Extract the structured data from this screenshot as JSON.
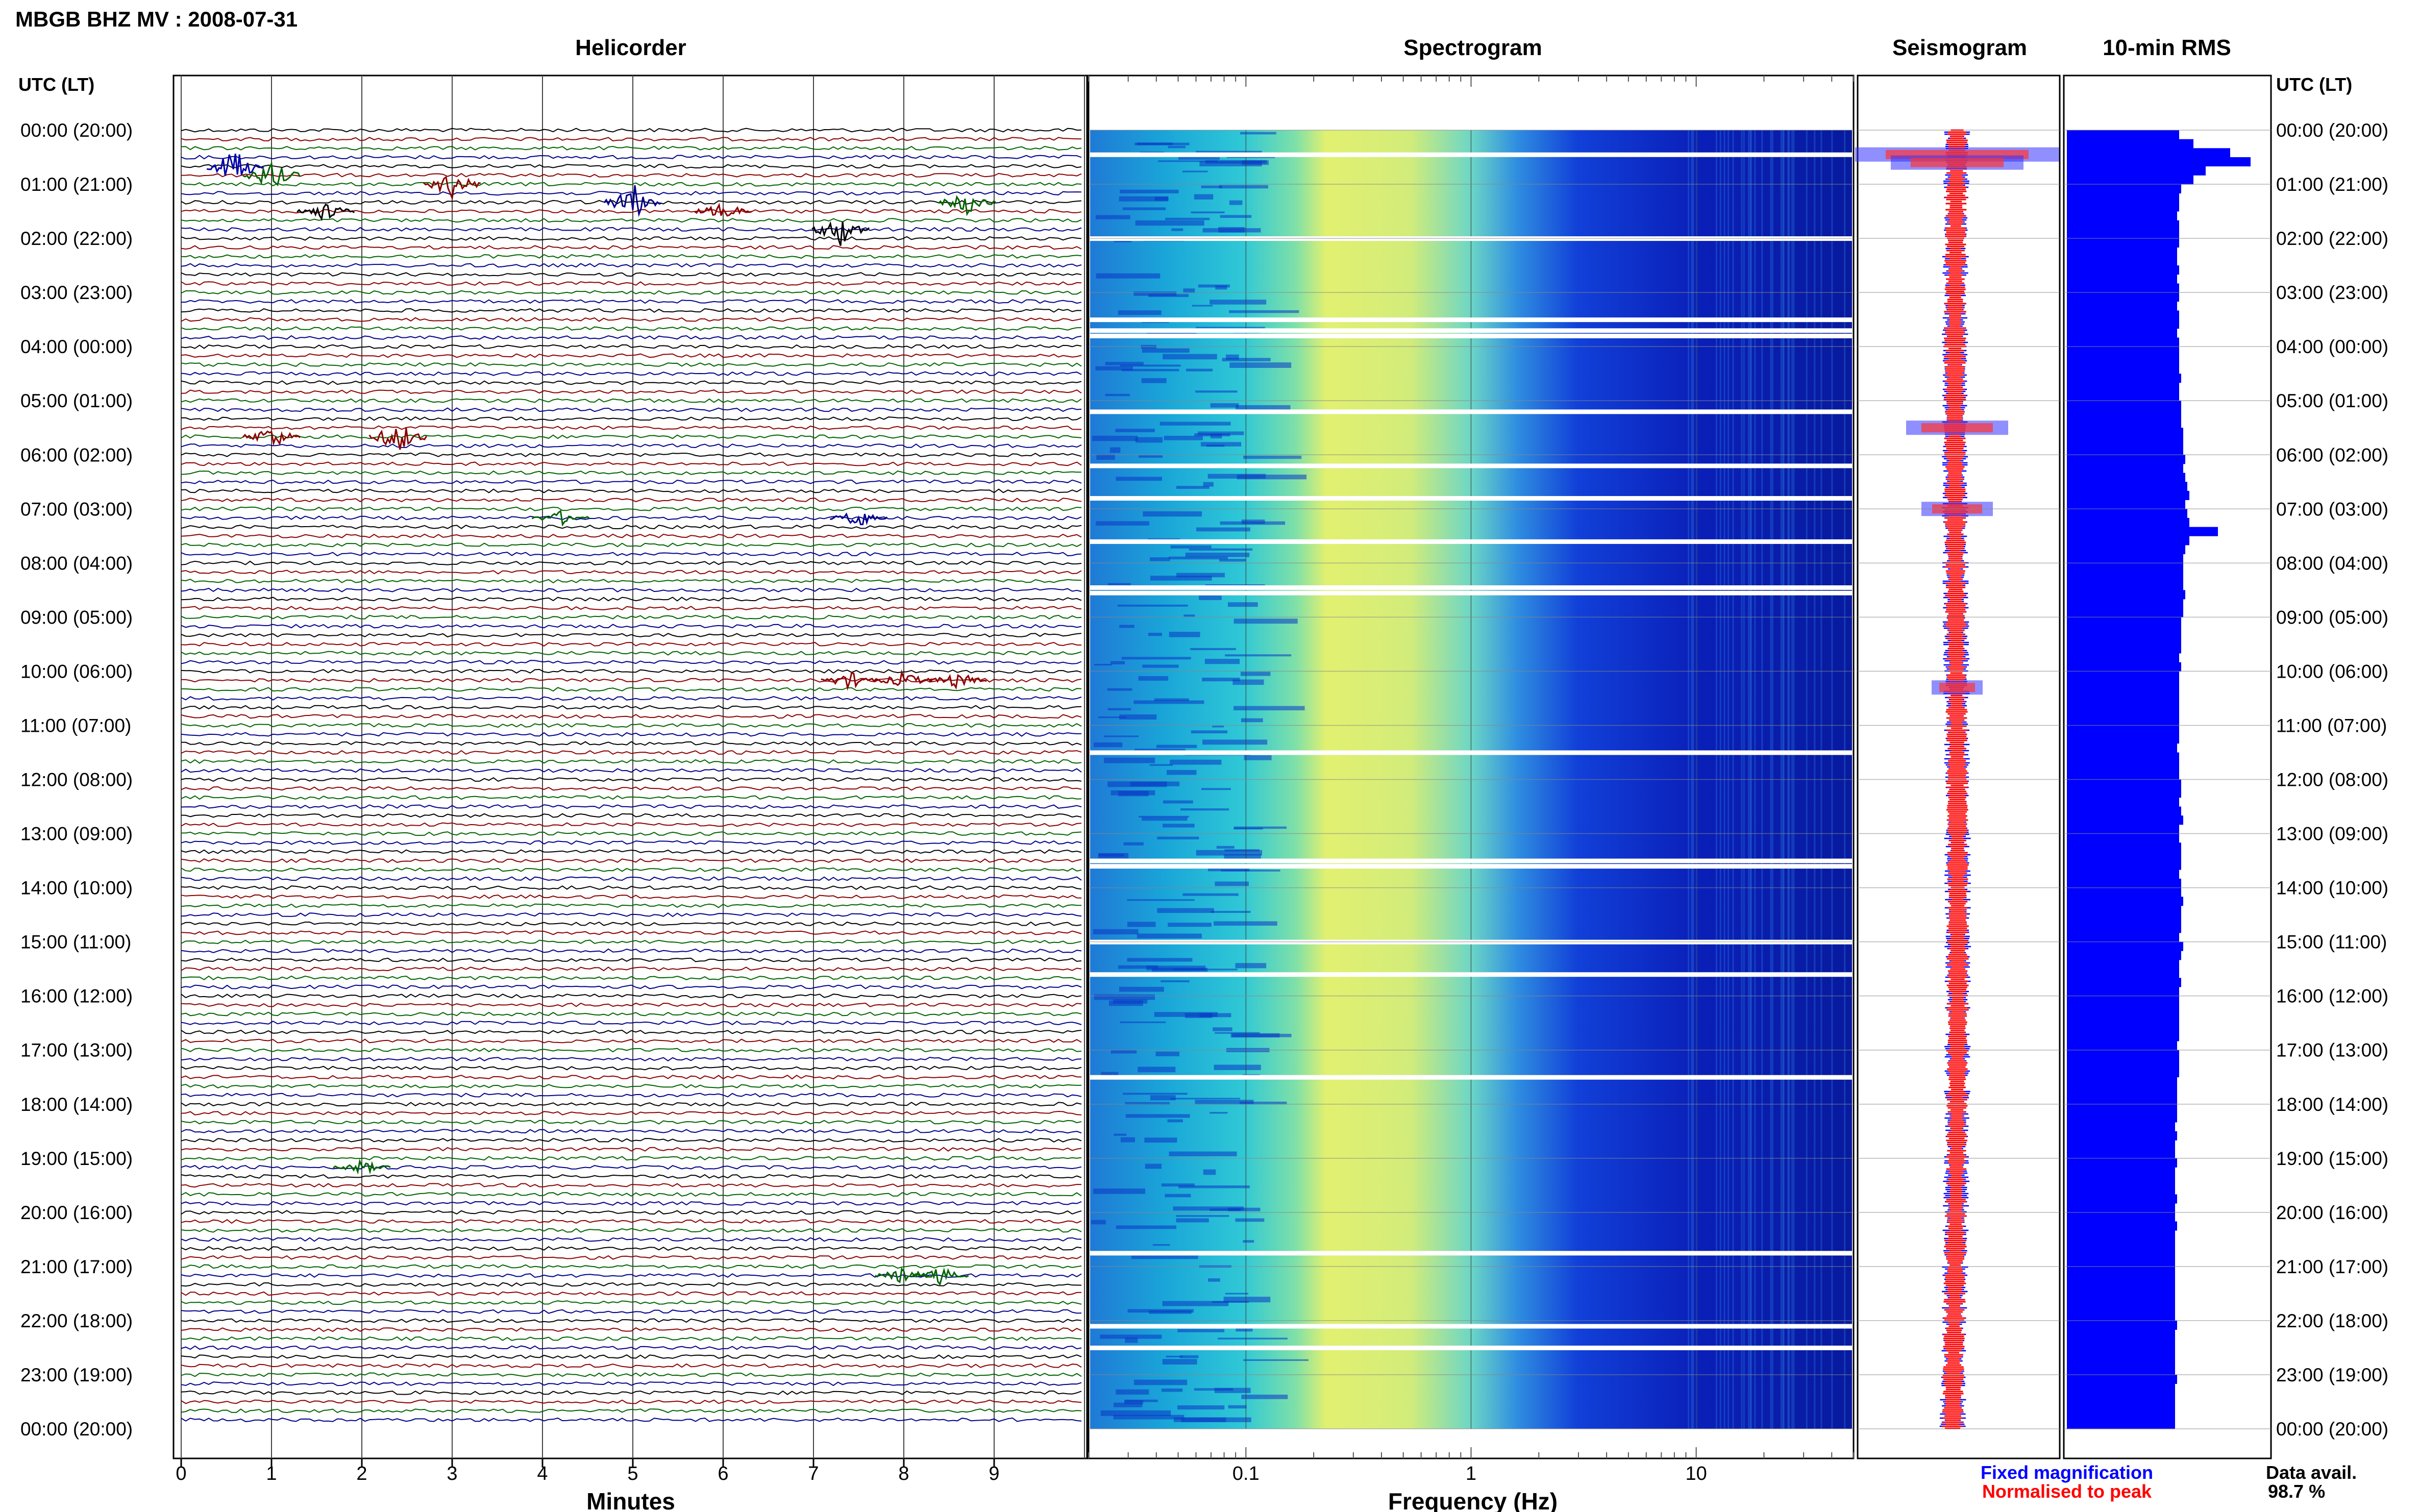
{
  "header": {
    "title": "MBGB BHZ MV : 2008-07-31",
    "utc_label_left": "UTC (LT)",
    "utc_label_right": "UTC (LT)"
  },
  "panels": {
    "helicorder": "Helicorder",
    "spectrogram": "Spectrogram",
    "seismogram": "Seismogram",
    "rms": "10-min RMS"
  },
  "time_labels": [
    "00:00 (20:00)",
    "01:00 (21:00)",
    "02:00 (22:00)",
    "03:00 (23:00)",
    "04:00 (00:00)",
    "05:00 (01:00)",
    "06:00 (02:00)",
    "07:00 (03:00)",
    "08:00 (04:00)",
    "09:00 (05:00)",
    "10:00 (06:00)",
    "11:00 (07:00)",
    "12:00 (08:00)",
    "13:00 (09:00)",
    "14:00 (10:00)",
    "15:00 (11:00)",
    "16:00 (12:00)",
    "17:00 (13:00)",
    "18:00 (14:00)",
    "19:00 (15:00)",
    "20:00 (16:00)",
    "21:00 (17:00)",
    "22:00 (18:00)",
    "23:00 (19:00)",
    "00:00 (20:00)"
  ],
  "helicorder_axis": {
    "label": "Minutes",
    "ticks": [
      "0",
      "1",
      "2",
      "3",
      "4",
      "5",
      "6",
      "7",
      "8",
      "9"
    ]
  },
  "spectrogram_axis": {
    "label": "Frequency (Hz)",
    "ticks": [
      "0.1",
      "1",
      "10"
    ]
  },
  "legend": {
    "fixed": "Fixed magnification",
    "normalised": "Normalised to peak",
    "fixed_color": "#0000ff",
    "normalised_color": "#ff0000"
  },
  "data_avail": {
    "label": "Data avail.",
    "value": "98.7 %"
  },
  "colors": {
    "trace_cycle": [
      "#000000",
      "#8b0000",
      "#006400",
      "#00008b"
    ],
    "rms_bar": "#0000ff"
  },
  "chart_data": [
    {
      "type": "line",
      "title": "Helicorder",
      "xlabel": "Minutes",
      "x_ticks": [
        0,
        1,
        2,
        3,
        4,
        5,
        6,
        7,
        8,
        9
      ],
      "xlim": [
        0,
        10
      ],
      "rows": 144,
      "row_minutes": 10
    },
    {
      "type": "heatmap",
      "title": "Spectrogram",
      "xlabel": "Frequency (Hz)",
      "x_scale": "log",
      "x_ticks": [
        0.1,
        1,
        10
      ],
      "xlim": [
        0.02,
        50
      ],
      "colormap": "jet"
    },
    {
      "type": "bar",
      "title": "10-min RMS",
      "orientation": "horizontal",
      "values": [
        0.55,
        0.62,
        0.8,
        0.9,
        0.68,
        0.62,
        0.56,
        0.55,
        0.55,
        0.54,
        0.55,
        0.55,
        0.55,
        0.54,
        0.54,
        0.55,
        0.54,
        0.55,
        0.55,
        0.54,
        0.55,
        0.55,
        0.54,
        0.55,
        0.55,
        0.55,
        0.55,
        0.56,
        0.55,
        0.55,
        0.56,
        0.56,
        0.56,
        0.57,
        0.57,
        0.57,
        0.58,
        0.57,
        0.58,
        0.59,
        0.6,
        0.58,
        0.59,
        0.6,
        0.74,
        0.6,
        0.58,
        0.57,
        0.57,
        0.57,
        0.57,
        0.58,
        0.57,
        0.57,
        0.56,
        0.56,
        0.56,
        0.56,
        0.55,
        0.56,
        0.55,
        0.55,
        0.55,
        0.55,
        0.55,
        0.55,
        0.55,
        0.55,
        0.54,
        0.55,
        0.55,
        0.55,
        0.56,
        0.56,
        0.55,
        0.56,
        0.57,
        0.55,
        0.55,
        0.56,
        0.56,
        0.56,
        0.55,
        0.56,
        0.56,
        0.57,
        0.56,
        0.56,
        0.56,
        0.55,
        0.57,
        0.56,
        0.55,
        0.55,
        0.56,
        0.55,
        0.55,
        0.55,
        0.55,
        0.55,
        0.55,
        0.54,
        0.55,
        0.55,
        0.55,
        0.54,
        0.54,
        0.54,
        0.54,
        0.54,
        0.53,
        0.54,
        0.53,
        0.53,
        0.54,
        0.53,
        0.53,
        0.53,
        0.54,
        0.53,
        0.53,
        0.54,
        0.53,
        0.53,
        0.53,
        0.53,
        0.53,
        0.53,
        0.53,
        0.53,
        0.53,
        0.53,
        0.54,
        0.53,
        0.53,
        0.53,
        0.53,
        0.53,
        0.54,
        0.53,
        0.53,
        0.53,
        0.53,
        0.53
      ]
    }
  ]
}
